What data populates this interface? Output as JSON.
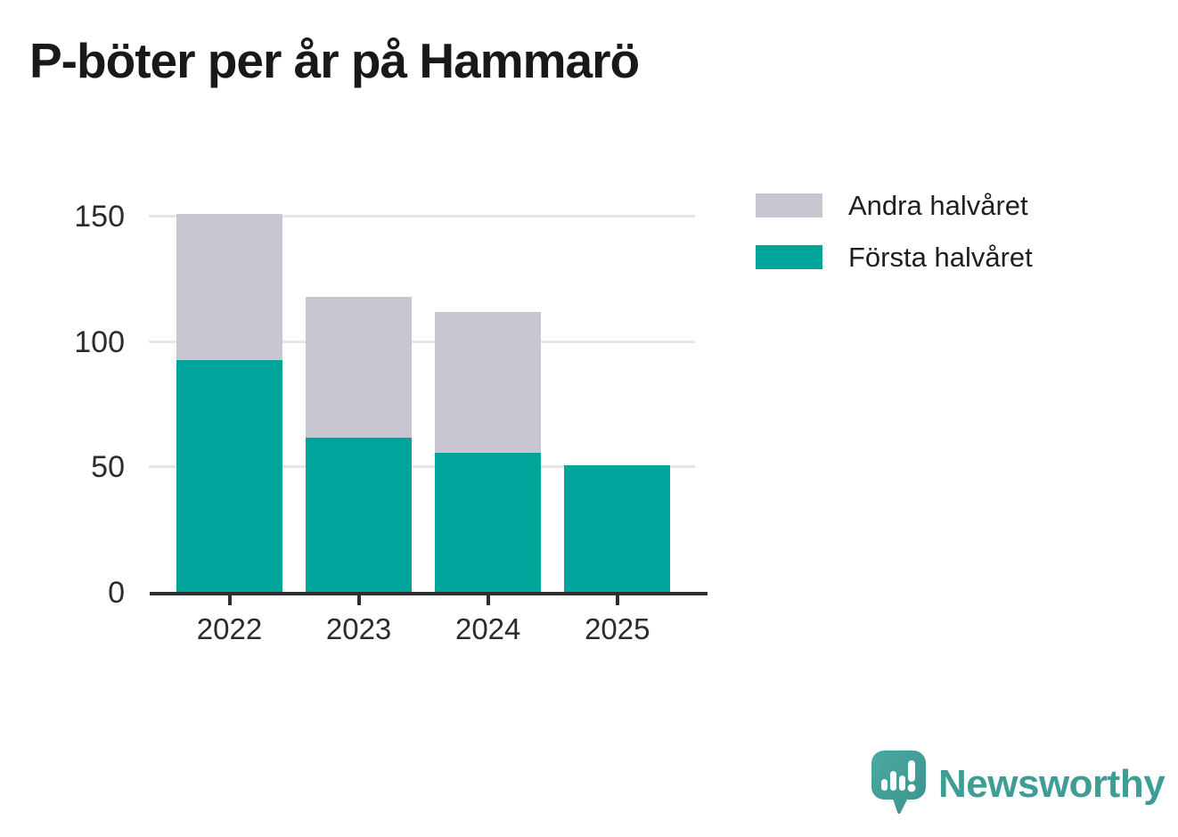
{
  "title": "P-böter per år på Hammarö",
  "chart_data": {
    "type": "bar",
    "stacked": true,
    "title": "P-böter per år på Hammarö",
    "categories": [
      "2022",
      "2023",
      "2024",
      "2025"
    ],
    "series": [
      {
        "name": "Första halvåret",
        "color": "#00A49B",
        "values": [
          93,
          62,
          56,
          51
        ]
      },
      {
        "name": "Andra halvåret",
        "color": "#C8C6D0",
        "values": [
          58,
          56,
          56,
          0
        ]
      }
    ],
    "stack_totals": [
      151,
      118,
      112,
      51
    ],
    "xlabel": "",
    "ylabel": "",
    "yticks": [
      0,
      50,
      100,
      150
    ],
    "ylim": [
      0,
      156
    ],
    "grid": "horizontal-light",
    "legend": {
      "position": "top-right",
      "entries": [
        {
          "label": "Andra halvåret",
          "color": "#C8C6D0"
        },
        {
          "label": "Första halvåret",
          "color": "#00A49B"
        }
      ]
    }
  },
  "colors": {
    "first_half": "#00A49B",
    "second_half": "#C8C6D0",
    "gridline": "#E6E5E9",
    "axis": "#2F2F2F",
    "tick_text": "#2B2B2B",
    "title_text": "#191919",
    "logo_bubble": "#45A09A",
    "logo_wordmark": "#3F9D96",
    "background": "#FFFFFF"
  },
  "footer": {
    "brand_name": "Newsworthy"
  }
}
